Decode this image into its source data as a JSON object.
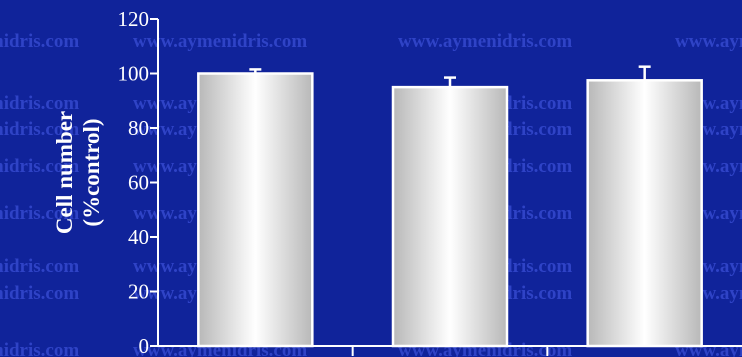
{
  "watermark": {
    "text": "www.aymenidris.com"
  },
  "chart_data": {
    "type": "bar",
    "categories": [
      "",
      "",
      ""
    ],
    "series": [
      {
        "values": [
          100,
          95,
          97.5
        ],
        "errors": [
          1.5,
          3.5,
          5
        ]
      }
    ],
    "title": "",
    "xlabel": "",
    "ylabel_lines": [
      "Cell number",
      "(%control)"
    ],
    "ylim": [
      0,
      120
    ],
    "yticks": [
      0,
      20,
      40,
      60,
      80,
      100,
      120
    ],
    "grid": false,
    "legend": "none",
    "colors": {
      "background": "#10239a",
      "axis": "#ffffff",
      "bar_edge": "#b8b8b8",
      "bar_center": "#ffffff",
      "bar_outline": "#ffffff",
      "error_bar": "#ffffff",
      "watermark": "#2f43c6"
    }
  }
}
